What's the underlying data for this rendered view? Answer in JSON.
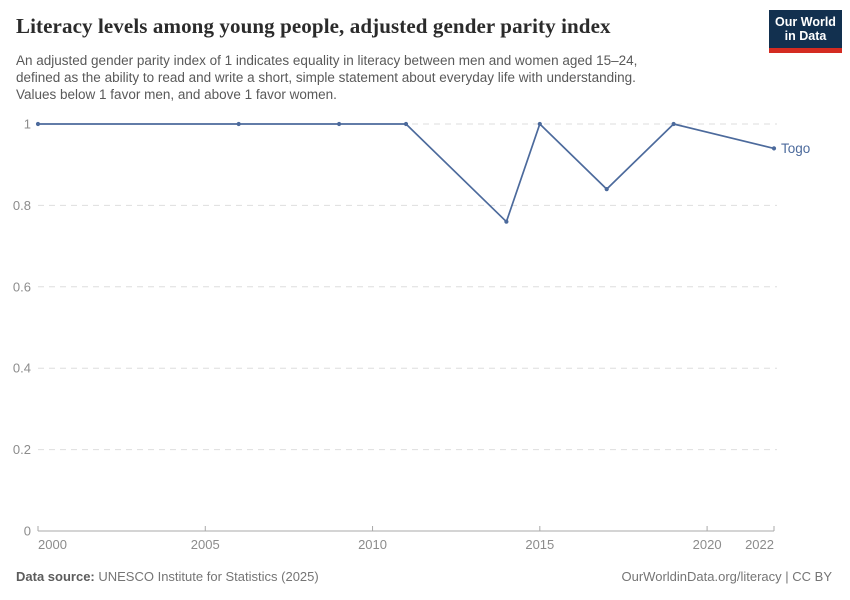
{
  "header": {
    "title": "Literacy levels among young people, adjusted gender parity index",
    "subtitle_lines": [
      "An adjusted gender parity index of 1 indicates equality in literacy between men and women aged 15–24,",
      "defined as the ability to read and write a short, simple statement about everyday life with understanding.",
      "Values below 1 favor men, and above 1 favor women."
    ],
    "logo": {
      "line1": "Our World",
      "line2": "in Data",
      "bg_color": "#12304f",
      "accent_color": "#d42b21"
    }
  },
  "chart_data": {
    "type": "line",
    "title": "Literacy levels among young people, adjusted gender parity index",
    "xlabel": "",
    "ylabel": "",
    "xlim": [
      2000,
      2022
    ],
    "ylim": [
      0,
      1
    ],
    "x_ticks": [
      2000,
      2005,
      2010,
      2015,
      2020,
      2022
    ],
    "y_ticks": [
      0,
      0.2,
      0.4,
      0.6,
      0.8,
      1
    ],
    "grid": "horizontal-dashed",
    "legend_position": "end-of-line-label",
    "series": [
      {
        "name": "Togo",
        "color": "#4c6a9c",
        "points": [
          {
            "x": 2000,
            "y": 1
          },
          {
            "x": 2006,
            "y": 1
          },
          {
            "x": 2009,
            "y": 1
          },
          {
            "x": 2011,
            "y": 1
          },
          {
            "x": 2014,
            "y": 0.76
          },
          {
            "x": 2015,
            "y": 1
          },
          {
            "x": 2017,
            "y": 0.84
          },
          {
            "x": 2019,
            "y": 1
          },
          {
            "x": 2022,
            "y": 0.94
          }
        ]
      }
    ],
    "colors": {
      "gridline": "#dedede",
      "axis_line": "#a8a8a8",
      "tick_label": "#8c8c8c"
    }
  },
  "footer": {
    "datasource_label": "Data source:",
    "datasource_value": " UNESCO Institute for Statistics (2025)",
    "credit": "OurWorldinData.org/literacy | CC BY"
  }
}
